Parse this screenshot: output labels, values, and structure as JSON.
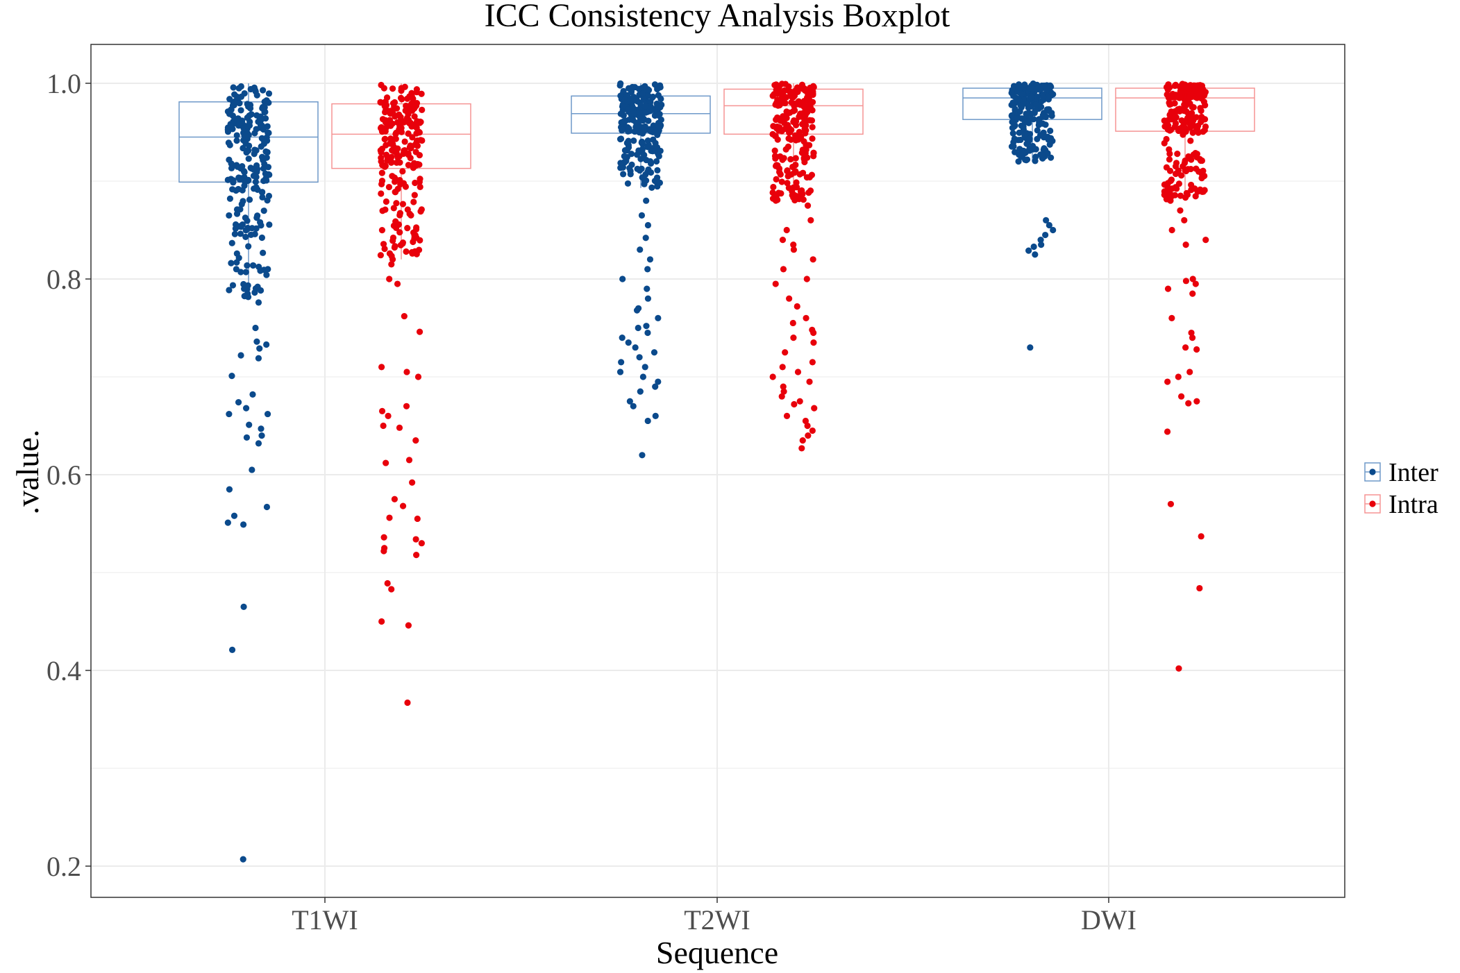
{
  "chart_data": {
    "type": "boxplot",
    "title": "ICC Consistency Analysis Boxplot",
    "xlabel": "Sequence",
    "ylabel": ".value.",
    "ylim": [
      0.17,
      1.05
    ],
    "yticks": [
      0.2,
      0.4,
      0.6,
      0.8,
      1.0
    ],
    "ytick_labels": [
      "0.2",
      "0.4",
      "0.6",
      "0.8",
      "1.0"
    ],
    "categories": [
      "T1WI",
      "T2WI",
      "DWI"
    ],
    "legend": {
      "position": "right",
      "entries": [
        "Inter",
        "Intra"
      ]
    },
    "colors": {
      "Inter": "#0b4a8c",
      "Intra": "#e8000b",
      "Inter_box": "#6e99c9",
      "Intra_box": "#f59494",
      "grid": "#ebebeb",
      "border": "#333333"
    },
    "series": [
      {
        "name": "Inter",
        "boxes": [
          {
            "category": "T1WI",
            "q1": 0.899,
            "median": 0.945,
            "q3": 0.981,
            "whisker_low": 0.78,
            "whisker_high": 1.0
          },
          {
            "category": "T2WI",
            "q1": 0.949,
            "median": 0.969,
            "q3": 0.987,
            "whisker_low": 0.893,
            "whisker_high": 1.0
          },
          {
            "category": "DWI",
            "q1": 0.963,
            "median": 0.985,
            "q3": 0.995,
            "whisker_low": 0.92,
            "whisker_high": 1.0
          }
        ],
        "outliers": [
          {
            "category": "T1WI",
            "values": [
              0.826,
              0.843,
              0.81,
              0.79,
              0.792,
              0.785,
              0.776,
              0.75,
              0.736,
              0.733,
              0.729,
              0.722,
              0.719,
              0.701,
              0.682,
              0.674,
              0.668,
              0.662,
              0.662,
              0.651,
              0.647,
              0.64,
              0.638,
              0.632,
              0.605,
              0.585,
              0.567,
              0.558,
              0.551,
              0.549,
              0.465,
              0.421,
              0.207
            ]
          },
          {
            "category": "T2WI",
            "values": [
              0.88,
              0.865,
              0.855,
              0.842,
              0.83,
              0.82,
              0.81,
              0.8,
              0.79,
              0.78,
              0.77,
              0.768,
              0.76,
              0.752,
              0.75,
              0.745,
              0.74,
              0.735,
              0.73,
              0.725,
              0.72,
              0.715,
              0.71,
              0.705,
              0.7,
              0.695,
              0.69,
              0.685,
              0.675,
              0.67,
              0.66,
              0.655,
              0.62
            ]
          },
          {
            "category": "DWI",
            "values": [
              0.86,
              0.855,
              0.85,
              0.845,
              0.84,
              0.835,
              0.833,
              0.829,
              0.825,
              0.73
            ]
          }
        ]
      },
      {
        "name": "Intra",
        "boxes": [
          {
            "category": "T1WI",
            "q1": 0.913,
            "median": 0.948,
            "q3": 0.979,
            "whisker_low": 0.82,
            "whisker_high": 1.0
          },
          {
            "category": "T2WI",
            "q1": 0.948,
            "median": 0.977,
            "q3": 0.994,
            "whisker_low": 0.88,
            "whisker_high": 1.0
          },
          {
            "category": "DWI",
            "q1": 0.951,
            "median": 0.985,
            "q3": 0.995,
            "whisker_low": 0.88,
            "whisker_high": 1.0
          }
        ],
        "outliers": [
          {
            "category": "T1WI",
            "values": [
              0.82,
              0.815,
              0.8,
              0.795,
              0.762,
              0.746,
              0.71,
              0.705,
              0.7,
              0.67,
              0.665,
              0.66,
              0.65,
              0.648,
              0.635,
              0.615,
              0.612,
              0.592,
              0.575,
              0.568,
              0.556,
              0.555,
              0.536,
              0.534,
              0.53,
              0.525,
              0.522,
              0.518,
              0.489,
              0.483,
              0.45,
              0.446,
              0.367
            ]
          },
          {
            "category": "T2WI",
            "values": [
              0.875,
              0.86,
              0.85,
              0.84,
              0.835,
              0.83,
              0.82,
              0.81,
              0.8,
              0.795,
              0.78,
              0.772,
              0.76,
              0.755,
              0.748,
              0.745,
              0.74,
              0.735,
              0.725,
              0.715,
              0.71,
              0.705,
              0.7,
              0.695,
              0.69,
              0.685,
              0.68,
              0.675,
              0.672,
              0.668,
              0.66,
              0.655,
              0.65,
              0.645,
              0.64,
              0.635,
              0.627
            ]
          },
          {
            "category": "DWI",
            "values": [
              0.87,
              0.86,
              0.85,
              0.84,
              0.835,
              0.8,
              0.798,
              0.795,
              0.79,
              0.785,
              0.76,
              0.745,
              0.74,
              0.73,
              0.728,
              0.705,
              0.7,
              0.695,
              0.68,
              0.675,
              0.673,
              0.644,
              0.57,
              0.537,
              0.484,
              0.402
            ]
          }
        ]
      }
    ]
  }
}
